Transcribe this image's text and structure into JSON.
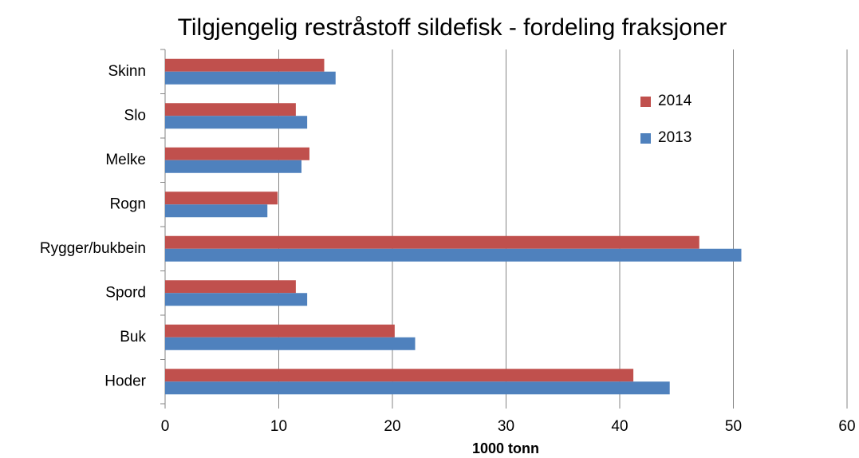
{
  "chart_data": {
    "type": "barh",
    "title": "Tilgjengelig restråstoff sildefisk - fordeling fraksjoner",
    "xlabel": "1000 tonn",
    "categories": [
      "Skinn",
      "Slo",
      "Melke",
      "Rogn",
      "Rygger/bukbein",
      "Spord",
      "Buk",
      "Hoder"
    ],
    "series": [
      {
        "name": "2014",
        "color": "#c0504d",
        "values": [
          14,
          11.5,
          12.7,
          9.9,
          47,
          11.5,
          20.2,
          41.2
        ]
      },
      {
        "name": "2013",
        "color": "#4f81bd",
        "values": [
          15,
          12.5,
          12,
          9,
          50.7,
          12.5,
          22,
          44.4
        ]
      }
    ],
    "xlim": [
      0,
      60
    ],
    "xticks": [
      0,
      10,
      20,
      30,
      40,
      50,
      60
    ],
    "grid": true,
    "legend": "upper right"
  }
}
